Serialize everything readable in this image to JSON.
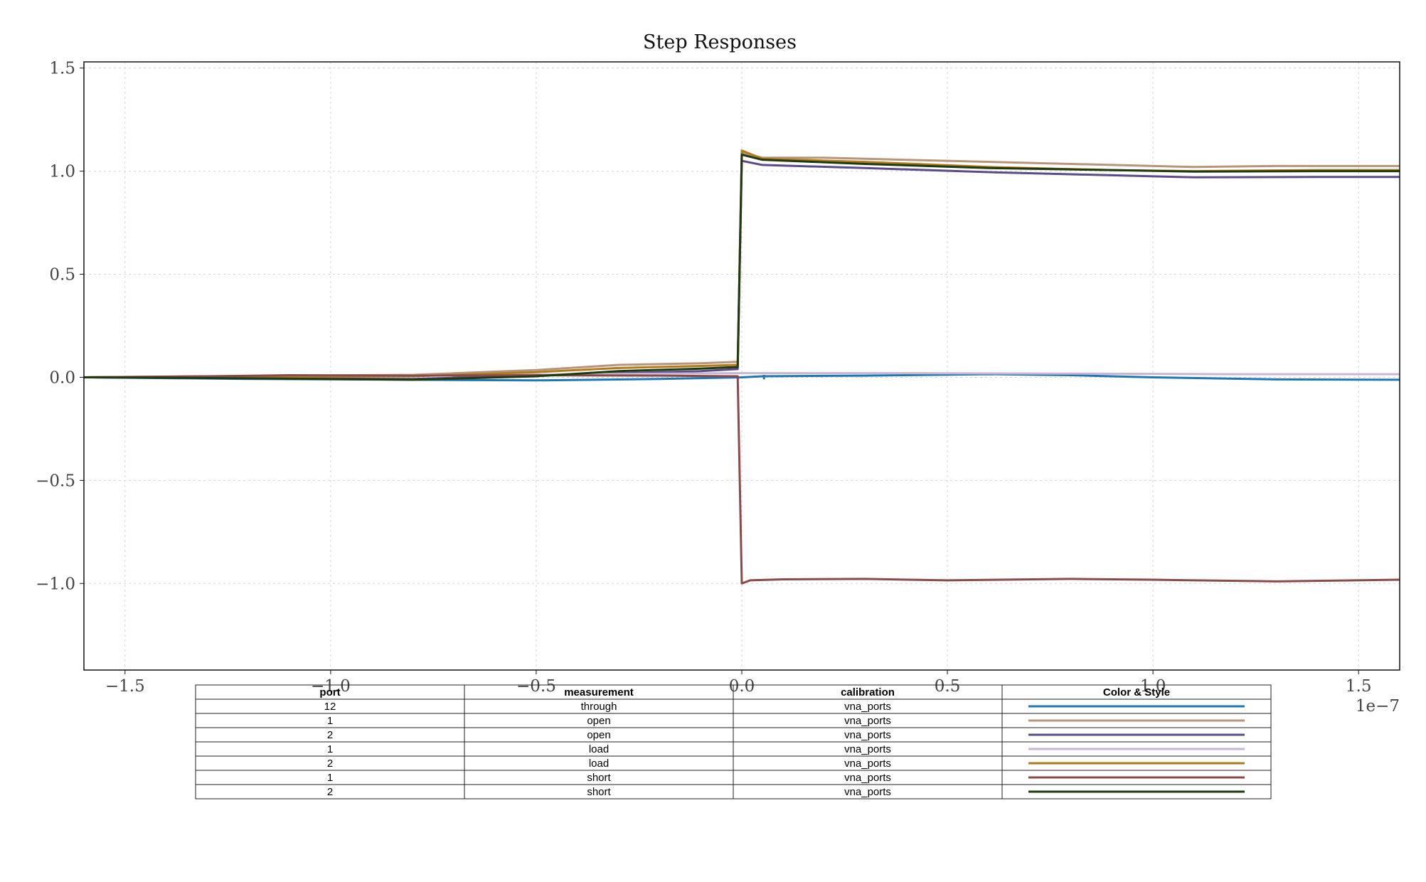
{
  "chart_data": {
    "type": "line",
    "title": "Step Responses",
    "xlabel": "",
    "ylabel": "",
    "x_offset_label": "1e−7",
    "xlim": [
      -1.6,
      1.6
    ],
    "ylim": [
      -1.42,
      1.53
    ],
    "x_ticks": [
      -1.5,
      -1.0,
      -0.5,
      0.0,
      0.5,
      1.0,
      1.5
    ],
    "x_tick_labels": [
      "−1.5",
      "−1.0",
      "−0.5",
      "0.0",
      "0.5",
      "1.0",
      "1.5"
    ],
    "y_ticks": [
      1.5,
      1.0,
      0.5,
      0.0,
      -0.5,
      -1.0
    ],
    "y_tick_labels": [
      "1.5",
      "1.0",
      "0.5",
      "0.0",
      "−0.5",
      "−1.0"
    ],
    "grid": true,
    "series": [
      {
        "color": "#1f77b4",
        "points": [
          [
            -1.6,
            0.0
          ],
          [
            -1.2,
            -0.008
          ],
          [
            -0.8,
            -0.012
          ],
          [
            -0.5,
            -0.015
          ],
          [
            -0.2,
            -0.008
          ],
          [
            0.0,
            0.0
          ],
          [
            0.05,
            0.005
          ],
          [
            0.3,
            0.008
          ],
          [
            0.6,
            0.015
          ],
          [
            0.8,
            0.01
          ],
          [
            1.0,
            0.0
          ],
          [
            1.3,
            -0.01
          ],
          [
            1.6,
            -0.012
          ]
        ]
      },
      {
        "color": "#b8957a",
        "points": [
          [
            -1.6,
            0.0
          ],
          [
            -1.2,
            0.006
          ],
          [
            -0.8,
            0.012
          ],
          [
            -0.5,
            0.035
          ],
          [
            -0.3,
            0.06
          ],
          [
            -0.1,
            0.068
          ],
          [
            -0.01,
            0.075
          ],
          [
            0.0,
            1.09
          ],
          [
            0.05,
            1.065
          ],
          [
            0.2,
            1.065
          ],
          [
            0.5,
            1.05
          ],
          [
            0.8,
            1.035
          ],
          [
            1.1,
            1.02
          ],
          [
            1.3,
            1.025
          ],
          [
            1.6,
            1.025
          ]
        ]
      },
      {
        "color": "#5c4b8a",
        "points": [
          [
            -1.6,
            0.0
          ],
          [
            -1.2,
            -0.005
          ],
          [
            -0.8,
            -0.008
          ],
          [
            -0.5,
            0.008
          ],
          [
            -0.3,
            0.02
          ],
          [
            -0.1,
            0.03
          ],
          [
            -0.01,
            0.04
          ],
          [
            0.0,
            1.05
          ],
          [
            0.05,
            1.03
          ],
          [
            0.3,
            1.015
          ],
          [
            0.6,
            0.995
          ],
          [
            0.9,
            0.98
          ],
          [
            1.1,
            0.97
          ],
          [
            1.4,
            0.972
          ],
          [
            1.6,
            0.972
          ]
        ]
      },
      {
        "color": "#c9b7d2",
        "points": [
          [
            -1.6,
            0.0
          ],
          [
            -1.2,
            0.005
          ],
          [
            -0.8,
            0.008
          ],
          [
            -0.4,
            0.015
          ],
          [
            0.0,
            0.02
          ],
          [
            0.4,
            0.02
          ],
          [
            0.8,
            0.018
          ],
          [
            1.2,
            0.015
          ],
          [
            1.6,
            0.015
          ]
        ]
      },
      {
        "color": "#b07a1e",
        "points": [
          [
            -1.6,
            0.0
          ],
          [
            -1.2,
            0.002
          ],
          [
            -0.8,
            0.005
          ],
          [
            -0.5,
            0.025
          ],
          [
            -0.3,
            0.045
          ],
          [
            -0.1,
            0.055
          ],
          [
            -0.01,
            0.06
          ],
          [
            0.0,
            1.1
          ],
          [
            0.05,
            1.06
          ],
          [
            0.3,
            1.045
          ],
          [
            0.6,
            1.02
          ],
          [
            0.9,
            1.005
          ],
          [
            1.1,
            1.0
          ],
          [
            1.4,
            1.005
          ],
          [
            1.6,
            1.005
          ]
        ]
      },
      {
        "color": "#8b4a4a",
        "points": [
          [
            -1.6,
            0.0
          ],
          [
            -1.3,
            0.005
          ],
          [
            -1.1,
            0.01
          ],
          [
            -0.8,
            0.008
          ],
          [
            -0.5,
            0.01
          ],
          [
            -0.2,
            0.008
          ],
          [
            -0.01,
            0.005
          ],
          [
            0.0,
            -1.0
          ],
          [
            0.02,
            -0.985
          ],
          [
            0.1,
            -0.98
          ],
          [
            0.3,
            -0.978
          ],
          [
            0.5,
            -0.985
          ],
          [
            0.8,
            -0.978
          ],
          [
            1.0,
            -0.982
          ],
          [
            1.3,
            -0.99
          ],
          [
            1.6,
            -0.982
          ]
        ]
      },
      {
        "color": "#1e3a0e",
        "points": [
          [
            -1.6,
            0.0
          ],
          [
            -1.2,
            -0.005
          ],
          [
            -0.8,
            -0.012
          ],
          [
            -0.5,
            0.005
          ],
          [
            -0.3,
            0.03
          ],
          [
            -0.1,
            0.042
          ],
          [
            -0.01,
            0.05
          ],
          [
            0.0,
            1.08
          ],
          [
            0.05,
            1.055
          ],
          [
            0.3,
            1.035
          ],
          [
            0.6,
            1.015
          ],
          [
            0.9,
            1.005
          ],
          [
            1.1,
            0.998
          ],
          [
            1.4,
            1.0
          ],
          [
            1.6,
            1.0
          ]
        ]
      }
    ]
  },
  "table": {
    "headers": [
      "port",
      "measurement",
      "calibration",
      "Color & Style"
    ],
    "rows": [
      {
        "port": "12",
        "measurement": "through",
        "calibration": "vna_ports",
        "color": "#1f77b4"
      },
      {
        "port": "1",
        "measurement": "open",
        "calibration": "vna_ports",
        "color": "#b8957a"
      },
      {
        "port": "2",
        "measurement": "open",
        "calibration": "vna_ports",
        "color": "#5c4b8a"
      },
      {
        "port": "1",
        "measurement": "load",
        "calibration": "vna_ports",
        "color": "#c9b7d2"
      },
      {
        "port": "2",
        "measurement": "load",
        "calibration": "vna_ports",
        "color": "#b07a1e"
      },
      {
        "port": "1",
        "measurement": "short",
        "calibration": "vna_ports",
        "color": "#8b4a4a"
      },
      {
        "port": "2",
        "measurement": "short",
        "calibration": "vna_ports",
        "color": "#1e3a0e"
      }
    ]
  }
}
